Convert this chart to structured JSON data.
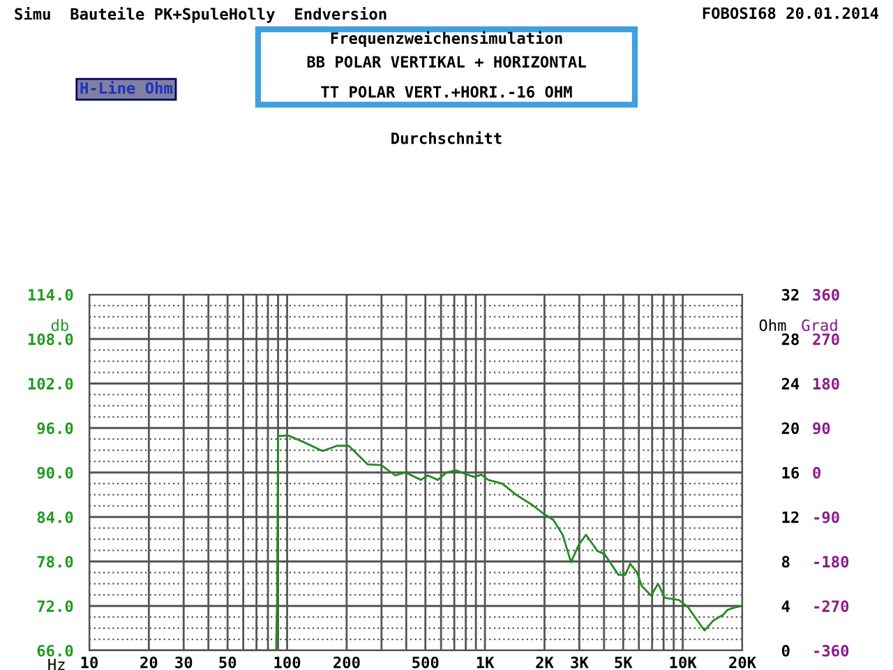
{
  "chart_data": {
    "type": "line",
    "title": "Frequenzweichensimulation",
    "subtitle": "BB POLAR VERTIKAL + HORIZONTAL\n\nTT POLAR VERT.+HORI.-16 OHM",
    "annotations": [
      "Simu  Bauteile PK+SpuleHolly  Endversion",
      "FOBOSI68 20.01.2014",
      "H-Line Ohm",
      "Durchschnitt"
    ],
    "xlabel": "Hz",
    "ylabel": "db",
    "y2label": "Ohm",
    "y3label": "Grad",
    "log": "x",
    "xlim": [
      10,
      20000
    ],
    "xticks": [
      10,
      20,
      30,
      {
        "value": 40,
        "label": null
      },
      50,
      {
        "value": 60,
        "label": null
      },
      {
        "value": 70,
        "label": null
      },
      {
        "value": 80,
        "label": null
      },
      {
        "value": 90,
        "label": null
      },
      100,
      200,
      {
        "value": 300,
        "label": null
      },
      {
        "value": 400,
        "label": null
      },
      500,
      {
        "value": 600,
        "label": null
      },
      {
        "value": 700,
        "label": null
      },
      {
        "value": 800,
        "label": null
      },
      {
        "value": 900,
        "label": null
      },
      {
        "value": 1000,
        "label": "1K"
      },
      {
        "value": 2000,
        "label": "2K"
      },
      {
        "value": 3000,
        "label": "3K"
      },
      {
        "value": 4000,
        "label": null
      },
      {
        "value": 5000,
        "label": "5K"
      },
      {
        "value": 6000,
        "label": null
      },
      {
        "value": 7000,
        "label": null
      },
      {
        "value": 8000,
        "label": null
      },
      {
        "value": 9000,
        "label": null
      },
      {
        "value": 10000,
        "label": "10K"
      },
      {
        "value": 20000,
        "label": "20K"
      }
    ],
    "ylim": [
      66,
      114
    ],
    "yticks": [
      {
        "value": 66,
        "label": "66.0"
      },
      {
        "value": 72,
        "label": "72.0"
      },
      {
        "value": 78,
        "label": "78.0"
      },
      {
        "value": 84,
        "label": "84.0"
      },
      {
        "value": 90,
        "label": "90.0"
      },
      {
        "value": 96,
        "label": "96.0"
      },
      {
        "value": 102,
        "label": "102.0"
      },
      {
        "value": 108,
        "label": "108.0"
      },
      {
        "value": 114,
        "label": "114.0"
      }
    ],
    "y2lim": [
      0,
      32
    ],
    "y2ticks": [
      0,
      4,
      8,
      12,
      16,
      20,
      24,
      28,
      32
    ],
    "y3lim": [
      -360,
      360
    ],
    "y3ticks": [
      -360,
      -270,
      -180,
      -90,
      0,
      90,
      180,
      270,
      360
    ],
    "grid": true,
    "marker": "none",
    "line_style": "solid",
    "series": [
      {
        "color": "#228b22",
        "x": [
          10,
          88,
          89,
          90,
          101,
          119,
          151,
          179,
          205,
          255,
          299,
          352,
          397,
          475,
          514,
          578,
          639,
          713,
          815,
          884,
          959,
          1040,
          1222,
          1438,
          1739,
          1990,
          2218,
          2471,
          2723,
          2985,
          3243,
          3710,
          4020,
          4730,
          5130,
          5420,
          5880,
          6200,
          6920,
          7500,
          8130,
          9570,
          10660,
          11880,
          12880,
          14360,
          15990,
          16900,
          18340,
          19870
        ],
        "values": [
          66,
          66,
          73,
          94.9,
          95.0,
          94.2,
          92.9,
          93.6,
          93.6,
          91.1,
          91.0,
          89.6,
          90.0,
          89.0,
          89.6,
          89.0,
          90.0,
          90.3,
          89.7,
          89.4,
          89.7,
          89.0,
          88.5,
          87.0,
          85.6,
          84.4,
          83.6,
          81.6,
          77.9,
          80.3,
          81.6,
          79.4,
          79.0,
          76.2,
          76.2,
          77.7,
          76.5,
          74.7,
          73.4,
          75.0,
          73.1,
          72.8,
          71.8,
          70.0,
          68.7,
          70.1,
          70.8,
          71.5,
          71.8,
          72.0
        ]
      }
    ]
  }
}
